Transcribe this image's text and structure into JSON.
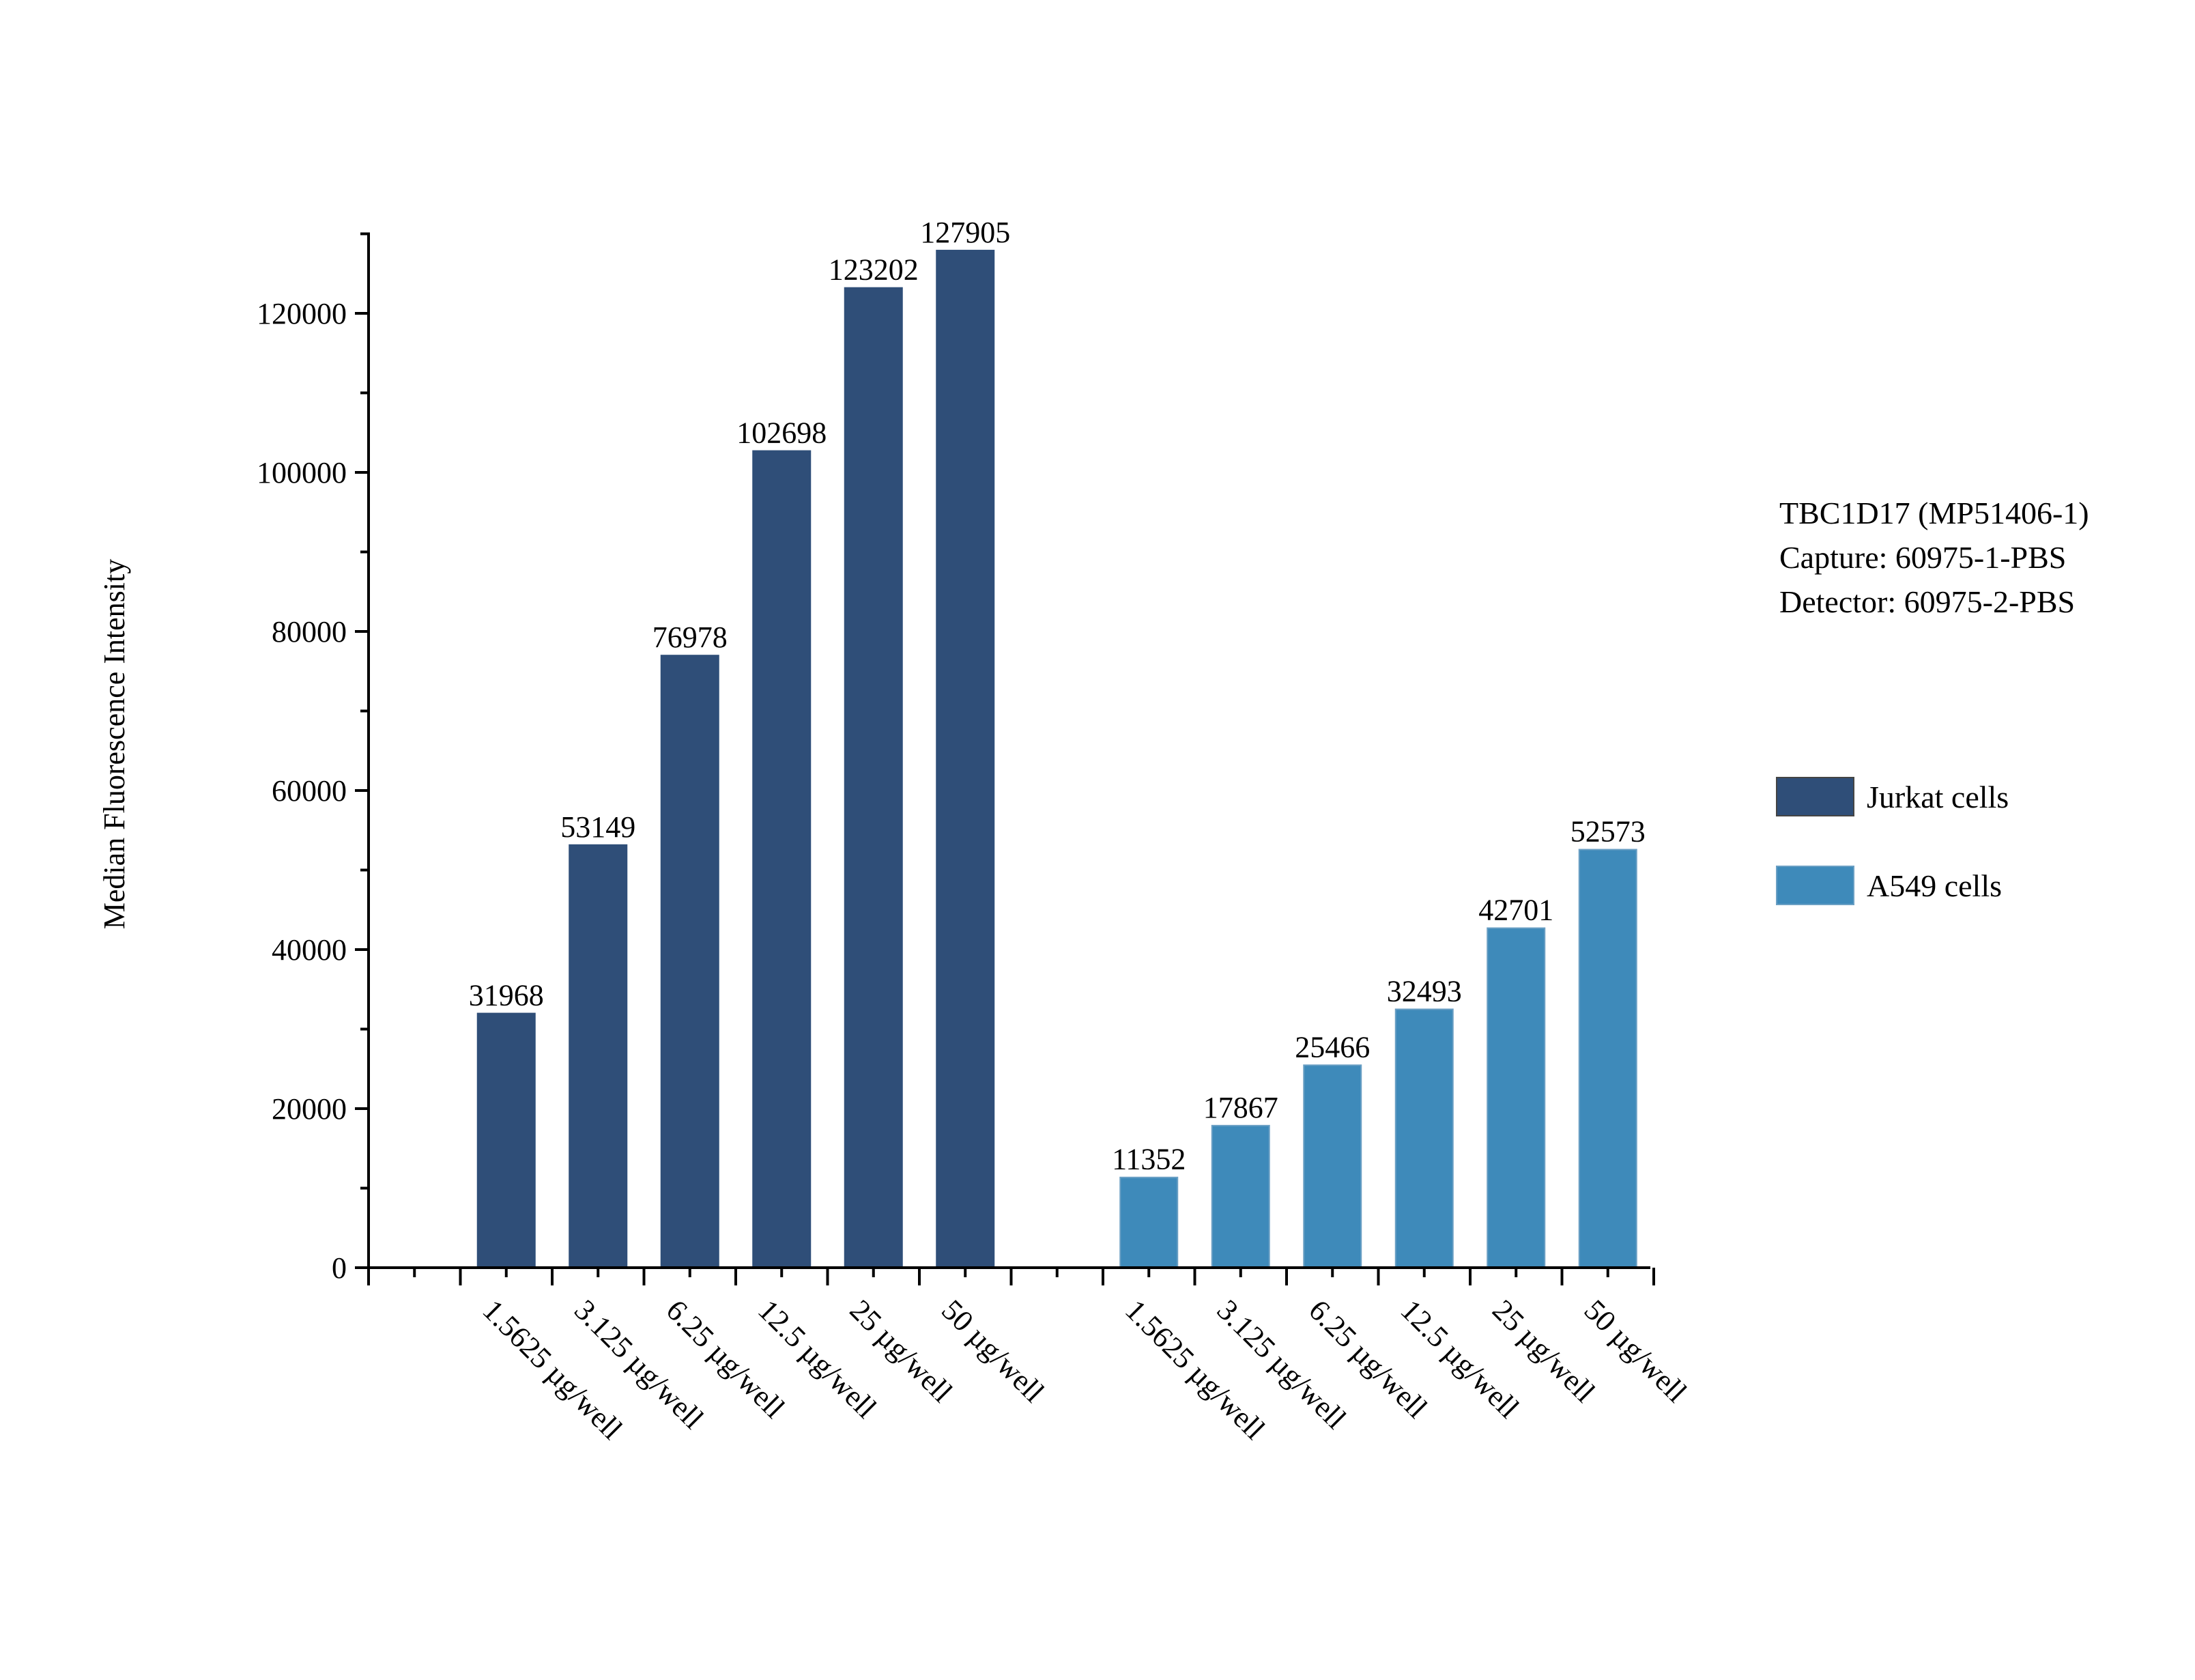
{
  "chart_data": {
    "type": "bar",
    "title": "",
    "xlabel": "",
    "ylabel": "Median Fluorescence Intensity",
    "ylim": [
      0,
      130000
    ],
    "yticks": [
      0,
      20000,
      40000,
      60000,
      80000,
      100000,
      120000
    ],
    "grid": false,
    "legend_position": "right",
    "annotation_lines": [
      "TBC1D17 (MP51406-1)",
      "Capture: 60975-1-PBS",
      "Detector: 60975-2-PBS"
    ],
    "series": [
      {
        "name": "Jurkat cells",
        "color": "#2f4e78",
        "categories": [
          "1.5625 µg/well",
          "3.125 µg/well",
          "6.25 µg/well",
          "12.5 µg/well",
          "25 µg/well",
          "50 µg/well"
        ],
        "values": [
          31968,
          53149,
          76978,
          102698,
          123202,
          127905
        ]
      },
      {
        "name": "A549 cells",
        "color": "#3e8aba",
        "categories": [
          "1.5625 µg/well",
          "3.125 µg/well",
          "6.25 µg/well",
          "12.5 µg/well",
          "25 µg/well",
          "50 µg/well"
        ],
        "values": [
          11352,
          17867,
          25466,
          32493,
          42701,
          52573
        ]
      }
    ]
  }
}
